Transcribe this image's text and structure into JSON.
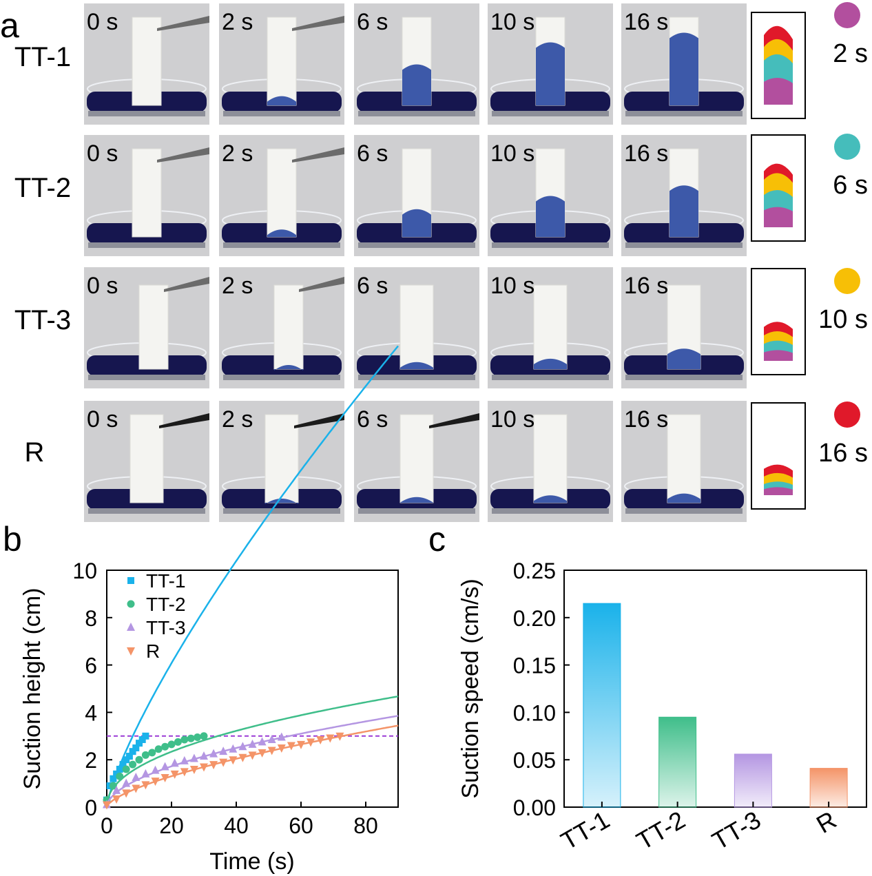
{
  "colors": {
    "tt1": "#1ab2ea",
    "tt2": "#3fbe8a",
    "tt3": "#b496e2",
    "r": "#f49468",
    "ref_line": "#9b3ad6",
    "dot_2s": "#b24f9e",
    "dot_6s": "#45bdbb",
    "dot_10s": "#f7bf06",
    "dot_16s": "#e0192a",
    "liquid": "#16164f",
    "photo_bg": "#cfcfd1"
  },
  "panel_a": {
    "label": "a",
    "rows": [
      {
        "name": "TT-1",
        "heights": [
          0,
          0.12,
          0.48,
          0.73,
          0.84
        ]
      },
      {
        "name": "TT-2",
        "heights": [
          0,
          0.1,
          0.33,
          0.48,
          0.6
        ]
      },
      {
        "name": "TT-3",
        "heights": [
          0,
          0.06,
          0.1,
          0.14,
          0.26
        ]
      },
      {
        "name": "R",
        "heights": [
          0,
          0.04,
          0.08,
          0.1,
          0.12
        ]
      }
    ],
    "times": [
      "0 s",
      "2 s",
      "6 s",
      "10 s",
      "16 s"
    ],
    "legend": [
      {
        "label": "2 s",
        "color": "#b24f9e"
      },
      {
        "label": "6 s",
        "color": "#45bdbb"
      },
      {
        "label": "10 s",
        "color": "#f7bf06"
      },
      {
        "label": "16 s",
        "color": "#e0192a"
      }
    ]
  },
  "chart_data": [
    {
      "panel_label": "b",
      "type": "scatter",
      "xlabel": "Time (s)",
      "ylabel": "Suction height (cm)",
      "xlim": [
        0,
        90
      ],
      "ylim": [
        0,
        10
      ],
      "xticks": [
        0,
        20,
        40,
        60,
        80
      ],
      "yticks": [
        0,
        2,
        4,
        6,
        8,
        10
      ],
      "reference_line": {
        "y": 3,
        "style": "dashed"
      },
      "legend_position": "top-left",
      "series": [
        {
          "name": "TT-1",
          "marker": "square",
          "color": "#1ab2ea",
          "x": [
            0,
            1,
            2,
            3,
            4,
            5,
            6,
            7,
            8,
            9,
            10,
            11,
            12
          ],
          "y": [
            0.3,
            0.9,
            1.2,
            1.4,
            1.6,
            1.8,
            2.0,
            2.15,
            2.35,
            2.5,
            2.7,
            2.85,
            3.0
          ],
          "fit": {
            "a": 0.598,
            "b": 0.774
          }
        },
        {
          "name": "TT-2",
          "marker": "circle",
          "color": "#3fbe8a",
          "x": [
            0,
            2,
            4,
            6,
            8,
            10,
            12,
            14,
            16,
            18,
            20,
            22,
            24,
            26,
            28,
            30
          ],
          "y": [
            0.3,
            0.9,
            1.3,
            1.6,
            1.8,
            2.0,
            2.2,
            2.3,
            2.45,
            2.55,
            2.65,
            2.75,
            2.85,
            2.9,
            2.95,
            3.0
          ],
          "fit": {
            "a": 0.59,
            "b": 0.46
          }
        },
        {
          "name": "TT-3",
          "marker": "triangle-up",
          "color": "#b496e2",
          "x": [
            0,
            3,
            6,
            9,
            12,
            15,
            18,
            21,
            24,
            27,
            30,
            33,
            36,
            39,
            42,
            45,
            48,
            51,
            54
          ],
          "y": [
            0.1,
            0.7,
            1.0,
            1.25,
            1.4,
            1.55,
            1.7,
            1.85,
            1.95,
            2.05,
            2.15,
            2.25,
            2.35,
            2.45,
            2.55,
            2.65,
            2.75,
            2.85,
            2.95
          ],
          "fit": {
            "a": 0.347,
            "b": 0.535
          }
        },
        {
          "name": "R",
          "marker": "triangle-down",
          "color": "#f49468",
          "x": [
            0,
            3,
            6,
            9,
            12,
            15,
            18,
            21,
            24,
            27,
            30,
            33,
            36,
            39,
            42,
            45,
            48,
            51,
            54,
            57,
            60,
            63,
            66,
            69,
            72
          ],
          "y": [
            0.1,
            0.35,
            0.6,
            0.8,
            0.95,
            1.1,
            1.25,
            1.4,
            1.5,
            1.6,
            1.7,
            1.8,
            1.9,
            2.0,
            2.1,
            2.2,
            2.3,
            2.4,
            2.5,
            2.6,
            2.65,
            2.75,
            2.85,
            2.92,
            3.0
          ],
          "fit": {
            "a": 0.189,
            "b": 0.645
          }
        }
      ]
    },
    {
      "panel_label": "c",
      "type": "bar",
      "xlabel": "",
      "ylabel": "Suction speed (cm/s)",
      "ylim": [
        0,
        0.25
      ],
      "yticks": [
        "0.00",
        "0.05",
        "0.10",
        "0.15",
        "0.20",
        "0.25"
      ],
      "categories": [
        "TT-1",
        "TT-2",
        "TT-3",
        "R"
      ],
      "values": [
        0.215,
        0.095,
        0.056,
        0.041
      ],
      "colors": [
        "#1ab2ea",
        "#3fbe8a",
        "#b496e2",
        "#f49468"
      ]
    }
  ]
}
